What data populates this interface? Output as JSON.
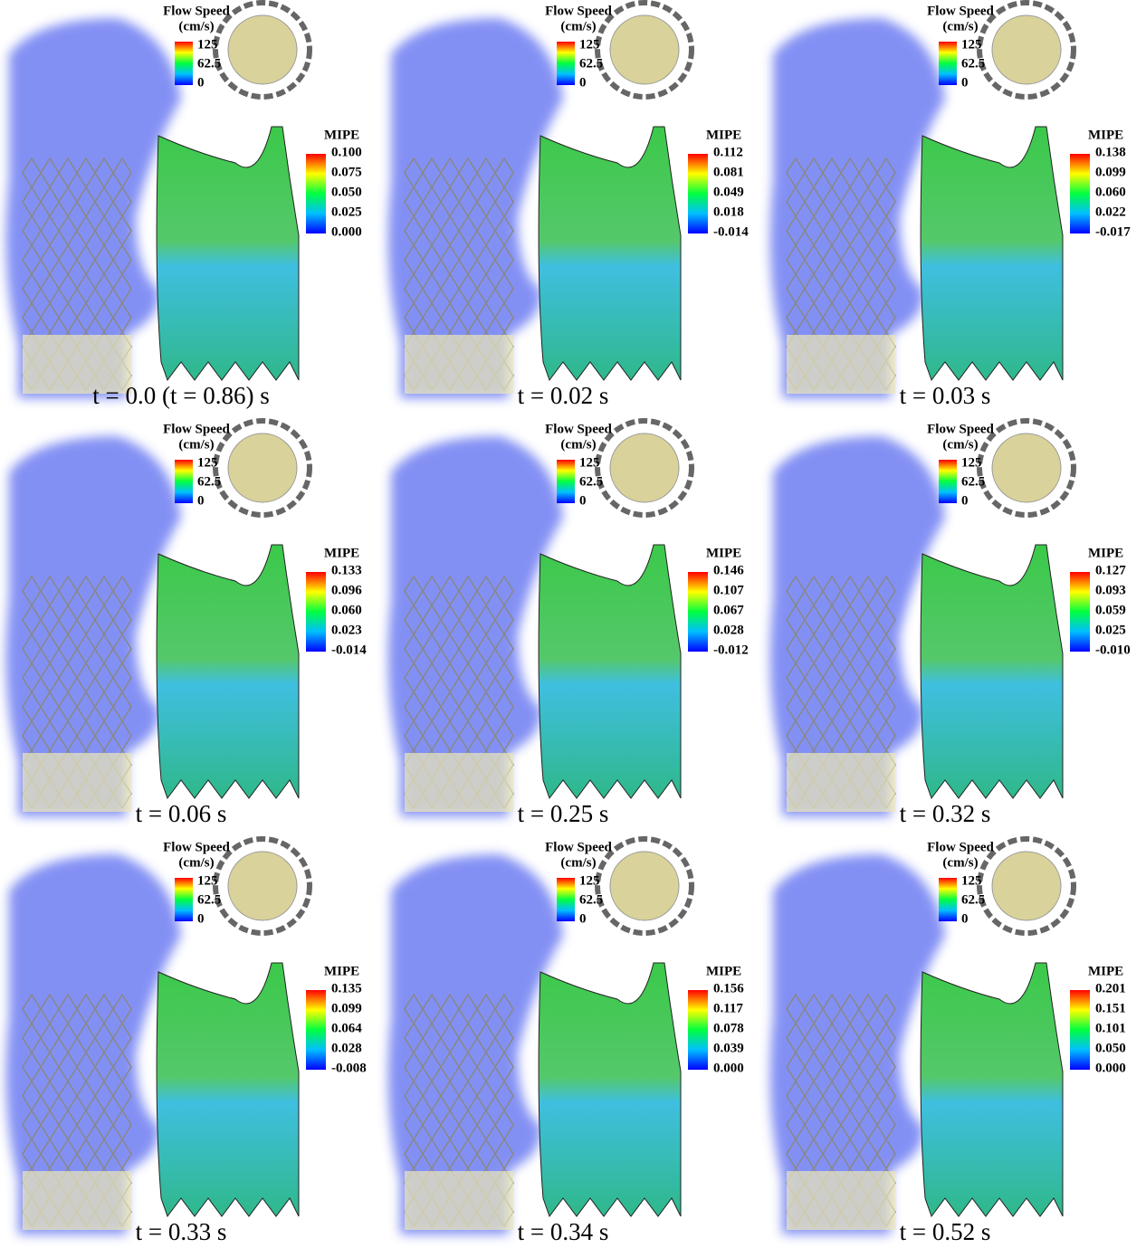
{
  "panels": [
    {
      "caption": "t = 0.0 (t = 0.86) s",
      "flow_legend": {
        "title": "Flow Speed",
        "unit": "(cm/s)",
        "ticks": [
          "125",
          "62.5",
          "0"
        ]
      },
      "mipe_legend": {
        "title": "MIPE",
        "ticks": [
          "0.100",
          "0.075",
          "0.050",
          "0.025",
          "0.000"
        ]
      }
    },
    {
      "caption": "t = 0.02 s",
      "flow_legend": {
        "title": "Flow Speed",
        "unit": "(cm/s)",
        "ticks": [
          "125",
          "62.5",
          "0"
        ]
      },
      "mipe_legend": {
        "title": "MIPE",
        "ticks": [
          "0.112",
          "0.081",
          "0.049",
          "0.018",
          "-0.014"
        ]
      }
    },
    {
      "caption": "t = 0.03 s",
      "flow_legend": {
        "title": "Flow Speed",
        "unit": "(cm/s)",
        "ticks": [
          "125",
          "62.5",
          "0"
        ]
      },
      "mipe_legend": {
        "title": "MIPE",
        "ticks": [
          "0.138",
          "0.099",
          "0.060",
          "0.022",
          "-0.017"
        ]
      }
    },
    {
      "caption": "t = 0.06 s",
      "flow_legend": {
        "title": "Flow Speed",
        "unit": "(cm/s)",
        "ticks": [
          "125",
          "62.5",
          "0"
        ]
      },
      "mipe_legend": {
        "title": "MIPE",
        "ticks": [
          "0.133",
          "0.096",
          "0.060",
          "0.023",
          "-0.014"
        ]
      }
    },
    {
      "caption": "t = 0.25 s",
      "flow_legend": {
        "title": "Flow Speed",
        "unit": "(cm/s)",
        "ticks": [
          "125",
          "62.5",
          "0"
        ]
      },
      "mipe_legend": {
        "title": "MIPE",
        "ticks": [
          "0.146",
          "0.107",
          "0.067",
          "0.028",
          "-0.012"
        ]
      }
    },
    {
      "caption": "t = 0.32 s",
      "flow_legend": {
        "title": "Flow Speed",
        "unit": "(cm/s)",
        "ticks": [
          "125",
          "62.5",
          "0"
        ]
      },
      "mipe_legend": {
        "title": "MIPE",
        "ticks": [
          "0.127",
          "0.093",
          "0.059",
          "0.025",
          "-0.010"
        ]
      }
    },
    {
      "caption": "t = 0.33 s",
      "flow_legend": {
        "title": "Flow Speed",
        "unit": "(cm/s)",
        "ticks": [
          "125",
          "62.5",
          "0"
        ]
      },
      "mipe_legend": {
        "title": "MIPE",
        "ticks": [
          "0.135",
          "0.099",
          "0.064",
          "0.028",
          "-0.008"
        ]
      }
    },
    {
      "caption": "t = 0.34 s",
      "flow_legend": {
        "title": "Flow Speed",
        "unit": "(cm/s)",
        "ticks": [
          "125",
          "62.5",
          "0"
        ]
      },
      "mipe_legend": {
        "title": "MIPE",
        "ticks": [
          "0.156",
          "0.117",
          "0.078",
          "0.039",
          "0.000"
        ]
      }
    },
    {
      "caption": "t = 0.52 s",
      "flow_legend": {
        "title": "Flow Speed",
        "unit": "(cm/s)",
        "ticks": [
          "125",
          "62.5",
          "0"
        ]
      },
      "mipe_legend": {
        "title": "MIPE",
        "ticks": [
          "0.201",
          "0.151",
          "0.101",
          "0.050",
          "0.000"
        ]
      }
    }
  ]
}
